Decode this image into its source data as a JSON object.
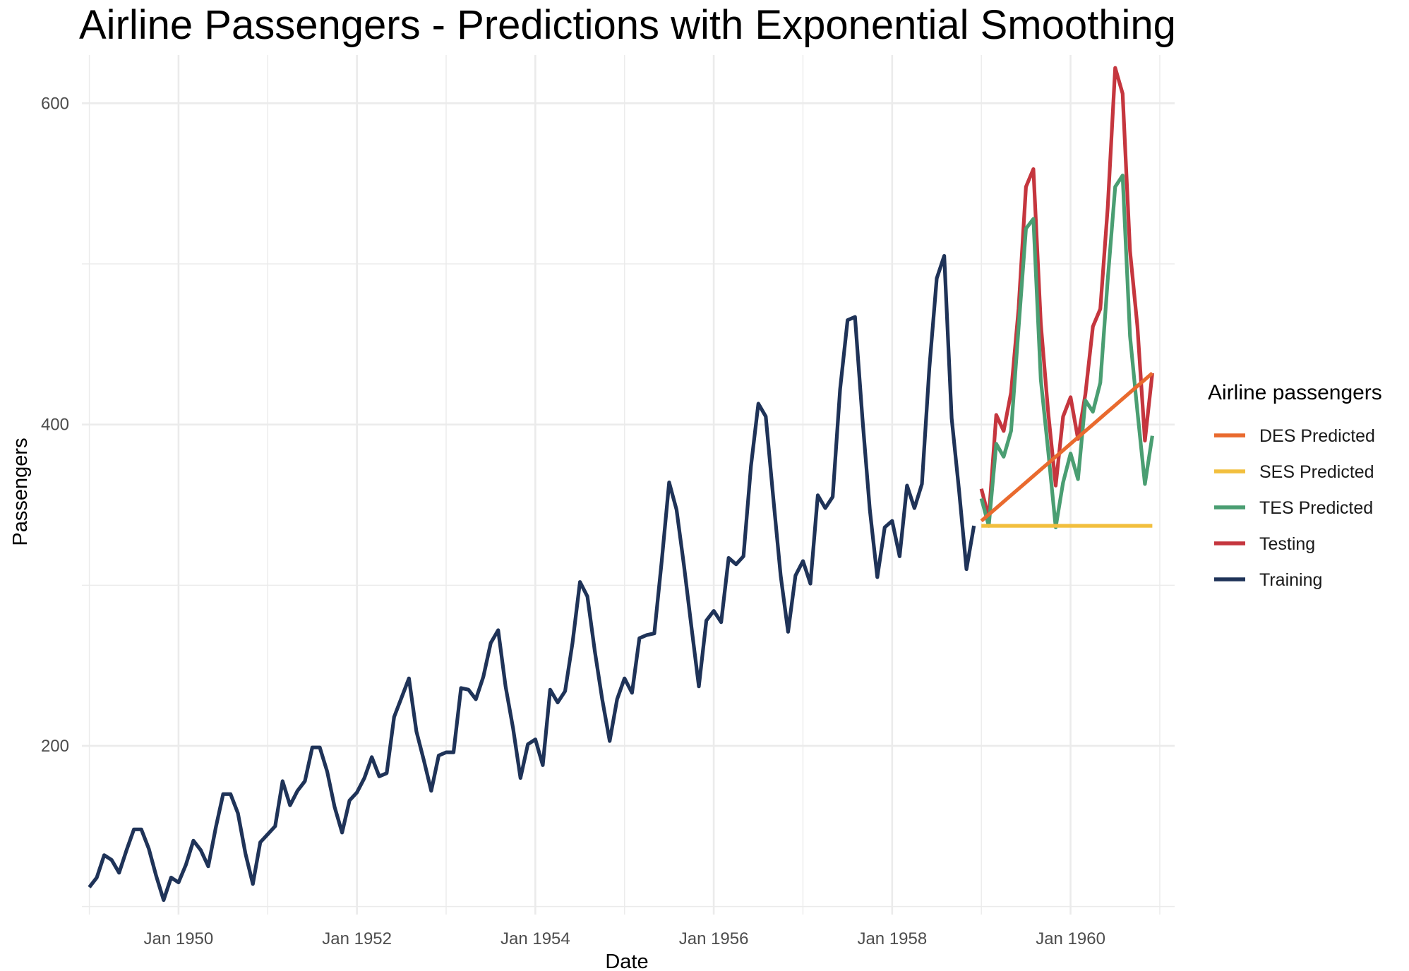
{
  "chart_data": {
    "type": "line",
    "title": "Airline Passengers - Predictions with Exponential Smoothing",
    "xlabel": "Date",
    "ylabel": "Passengers",
    "ylim": [
      95,
      630
    ],
    "yticks": [
      200,
      400,
      600
    ],
    "xlim": [
      "1948-12",
      "1961-03"
    ],
    "xticks": [
      {
        "date": "1950-01",
        "label": "Jan 1950"
      },
      {
        "date": "1952-01",
        "label": "Jan 1952"
      },
      {
        "date": "1954-01",
        "label": "Jan 1954"
      },
      {
        "date": "1956-01",
        "label": "Jan 1956"
      },
      {
        "date": "1958-01",
        "label": "Jan 1958"
      },
      {
        "date": "1960-01",
        "label": "Jan 1960"
      }
    ],
    "grid": true,
    "legend": {
      "title": "Airline passengers",
      "placement": "right",
      "entries": [
        "DES Predicted",
        "SES Predicted",
        "TES Predicted",
        "Testing",
        "Training"
      ]
    },
    "series": [
      {
        "name": "Training",
        "color": "#1f3358",
        "start": "1949-01",
        "values": [
          112,
          118,
          132,
          129,
          121,
          135,
          148,
          148,
          136,
          119,
          104,
          118,
          115,
          126,
          141,
          135,
          125,
          149,
          170,
          170,
          158,
          133,
          114,
          140,
          145,
          150,
          178,
          163,
          172,
          178,
          199,
          199,
          184,
          162,
          146,
          166,
          171,
          180,
          193,
          181,
          183,
          218,
          230,
          242,
          209,
          191,
          172,
          194,
          196,
          196,
          236,
          235,
          229,
          243,
          264,
          272,
          237,
          211,
          180,
          201,
          204,
          188,
          235,
          227,
          234,
          264,
          302,
          293,
          259,
          229,
          203,
          229,
          242,
          233,
          267,
          269,
          270,
          315,
          364,
          347,
          312,
          274,
          237,
          278,
          284,
          277,
          317,
          313,
          318,
          374,
          413,
          405,
          355,
          306,
          271,
          306,
          315,
          301,
          356,
          348,
          355,
          422,
          465,
          467,
          404,
          347,
          305,
          336,
          340,
          318,
          362,
          348,
          363,
          435,
          491,
          505,
          404,
          359,
          310,
          337
        ]
      },
      {
        "name": "Testing",
        "color": "#c5363e",
        "start": "1959-01",
        "values": [
          360,
          342,
          406,
          396,
          420,
          472,
          548,
          559,
          463,
          407,
          362,
          405,
          417,
          391,
          419,
          461,
          472,
          535,
          622,
          606,
          508,
          461,
          390,
          432
        ]
      },
      {
        "name": "TES Predicted",
        "color": "#4a9e72",
        "start": "1959-01",
        "values": [
          354,
          337,
          388,
          380,
          396,
          460,
          522,
          528,
          428,
          383,
          336,
          364,
          382,
          366,
          415,
          408,
          426,
          490,
          548,
          555,
          455,
          408,
          363,
          393
        ]
      },
      {
        "name": "DES Predicted",
        "color": "#e96a2e",
        "start": "1959-01",
        "values": [
          340,
          344,
          348,
          352,
          356,
          360,
          364,
          368,
          372,
          376,
          380,
          384,
          388,
          392,
          396,
          400,
          404,
          408,
          412,
          416,
          420,
          424,
          428,
          432
        ]
      },
      {
        "name": "SES Predicted",
        "color": "#f2bf3e",
        "start": "1959-01",
        "values": [
          337,
          337,
          337,
          337,
          337,
          337,
          337,
          337,
          337,
          337,
          337,
          337,
          337,
          337,
          337,
          337,
          337,
          337,
          337,
          337,
          337,
          337,
          337,
          337
        ]
      }
    ]
  }
}
